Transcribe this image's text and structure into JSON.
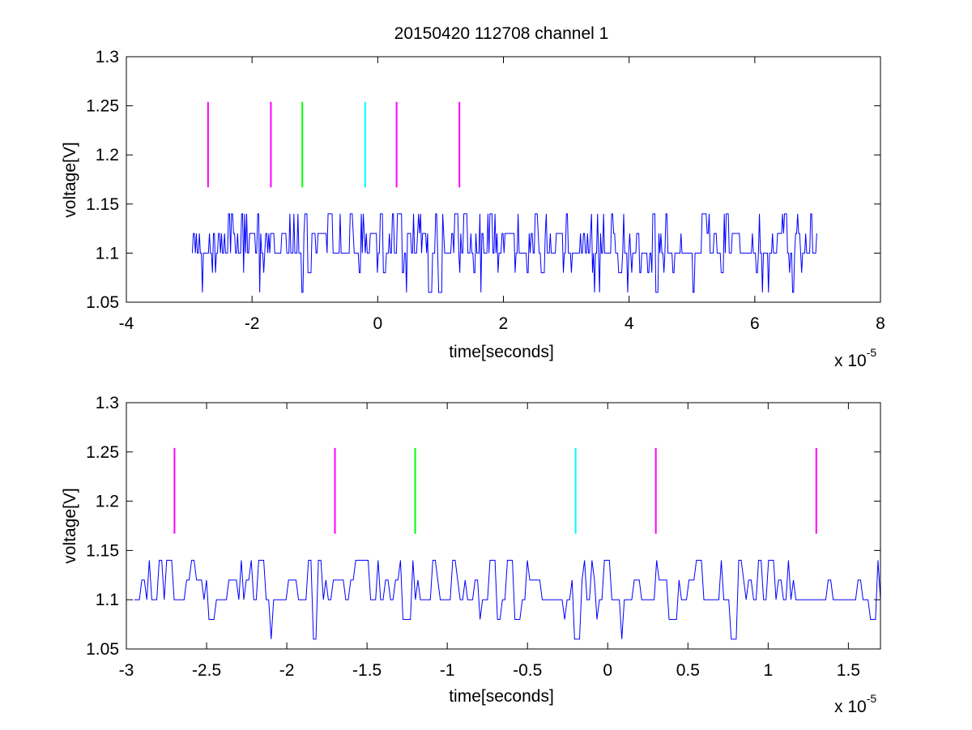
{
  "figure": {
    "title": "20150420 112708 channel 1"
  },
  "chart_data": [
    {
      "type": "line",
      "title": "20150420 112708 channel 1",
      "xlabel": "time[seconds]",
      "ylabel": "voltage[V]",
      "x_exponent_label": "x 10",
      "x_exponent_sup": "-5",
      "xlim": [
        -4,
        8
      ],
      "ylim": [
        1.05,
        1.3
      ],
      "xticks": [
        -4,
        -2,
        0,
        2,
        4,
        6,
        8
      ],
      "xtick_labels": [
        "-4",
        "-2",
        "0",
        "2",
        "4",
        "6",
        "8"
      ],
      "yticks": [
        1.05,
        1.1,
        1.15,
        1.2,
        1.25,
        1.3
      ],
      "ytick_labels": [
        "1.05",
        "1.1",
        "1.15",
        "1.2",
        "1.25",
        "1.3"
      ],
      "grid": false,
      "signal": {
        "color": "#0000ff",
        "x_start": -2.95,
        "x_end": 7.0,
        "levels": [
          1.06,
          1.08,
          1.1,
          1.12,
          1.14
        ],
        "note": "sampled digitizer voltage, quantized between 1.06 and 1.14"
      },
      "markers": [
        {
          "x": -2.7,
          "y0": 1.167,
          "y1": 1.254,
          "color": "#ff00ff"
        },
        {
          "x": -1.7,
          "y0": 1.167,
          "y1": 1.254,
          "color": "#ff00ff"
        },
        {
          "x": -1.2,
          "y0": 1.167,
          "y1": 1.254,
          "color": "#00ff00"
        },
        {
          "x": -0.2,
          "y0": 1.167,
          "y1": 1.254,
          "color": "#00ffff"
        },
        {
          "x": 0.3,
          "y0": 1.167,
          "y1": 1.254,
          "color": "#ff00ff"
        },
        {
          "x": 1.3,
          "y0": 1.167,
          "y1": 1.254,
          "color": "#ff00ff"
        }
      ]
    },
    {
      "type": "line",
      "title": "",
      "xlabel": "time[seconds]",
      "ylabel": "voltage[V]",
      "x_exponent_label": "x 10",
      "x_exponent_sup": "-5",
      "xlim": [
        -3.0,
        1.7
      ],
      "ylim": [
        1.05,
        1.3
      ],
      "xticks": [
        -3,
        -2.5,
        -2,
        -1.5,
        -1,
        -0.5,
        0,
        0.5,
        1,
        1.5
      ],
      "xtick_labels": [
        "-3",
        "-2.5",
        "-2",
        "-1.5",
        "-1",
        "-0.5",
        "0",
        "0.5",
        "1",
        "1.5"
      ],
      "yticks": [
        1.05,
        1.1,
        1.15,
        1.2,
        1.25,
        1.3
      ],
      "ytick_labels": [
        "1.05",
        "1.1",
        "1.15",
        "1.2",
        "1.25",
        "1.3"
      ],
      "grid": false,
      "signal": {
        "color": "#0000ff",
        "x_start": -2.95,
        "x_end": 1.7,
        "levels": [
          1.06,
          1.08,
          1.1,
          1.12,
          1.14
        ],
        "note": "zoomed view of the same quantized voltage trace"
      },
      "markers": [
        {
          "x": -2.7,
          "y0": 1.167,
          "y1": 1.254,
          "color": "#ff00ff"
        },
        {
          "x": -1.7,
          "y0": 1.167,
          "y1": 1.254,
          "color": "#ff00ff"
        },
        {
          "x": -1.2,
          "y0": 1.167,
          "y1": 1.254,
          "color": "#00ff00"
        },
        {
          "x": -0.2,
          "y0": 1.167,
          "y1": 1.254,
          "color": "#00ffff"
        },
        {
          "x": 0.3,
          "y0": 1.167,
          "y1": 1.254,
          "color": "#ff00ff"
        },
        {
          "x": 1.3,
          "y0": 1.167,
          "y1": 1.254,
          "color": "#ff00ff"
        }
      ]
    }
  ]
}
